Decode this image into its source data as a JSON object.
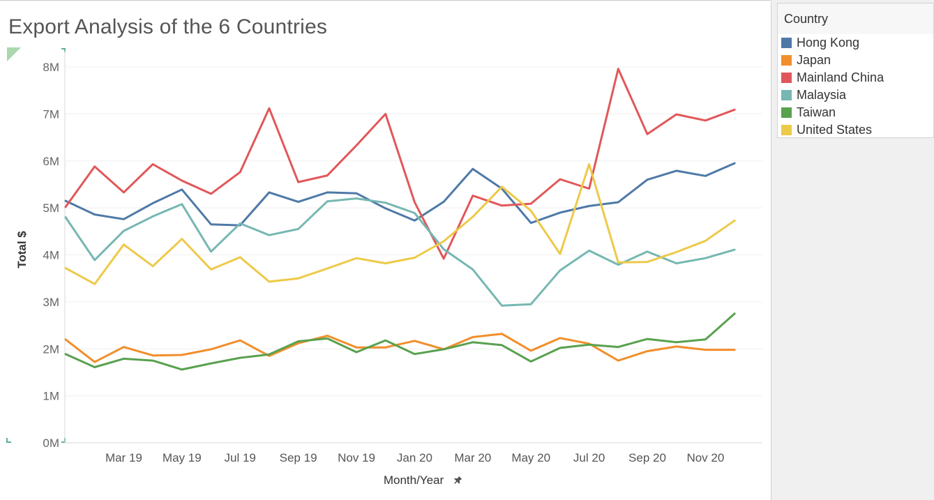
{
  "title": "Export Analysis of the 6 Countries",
  "legend": {
    "title": "Country",
    "items": [
      {
        "label": "Hong Kong",
        "color": "#4e79a7"
      },
      {
        "label": "Japan",
        "color": "#f28e2b"
      },
      {
        "label": "Mainland China",
        "color": "#e15759"
      },
      {
        "label": "Malaysia",
        "color": "#76b7b2"
      },
      {
        "label": "Taiwan",
        "color": "#59a14f"
      },
      {
        "label": "United States",
        "color": "#edc948"
      }
    ]
  },
  "chart_data": {
    "type": "line",
    "title": "Export Analysis of the 6 Countries",
    "xlabel": "Month/Year",
    "ylabel": "Total $",
    "x": [
      "Jan 19",
      "Feb 19",
      "Mar 19",
      "Apr 19",
      "May 19",
      "Jun 19",
      "Jul 19",
      "Aug 19",
      "Sep 19",
      "Oct 19",
      "Nov 19",
      "Dec 19",
      "Jan 20",
      "Feb 20",
      "Mar 20",
      "Apr 20",
      "May 20",
      "Jun 20",
      "Jul 20",
      "Aug 20",
      "Sep 20",
      "Oct 20",
      "Nov 20",
      "Dec 20"
    ],
    "x_tick_labels": [
      "Mar 19",
      "May 19",
      "Jul 19",
      "Sep 19",
      "Nov 19",
      "Jan 20",
      "Mar 20",
      "May 20",
      "Jul 20",
      "Sep 20",
      "Nov 20"
    ],
    "y_tick_labels": [
      "0M",
      "1M",
      "2M",
      "3M",
      "4M",
      "5M",
      "6M",
      "7M",
      "8M"
    ],
    "ylim": [
      0,
      8000000
    ],
    "grid": true,
    "legend_position": "right",
    "series": [
      {
        "name": "Hong Kong",
        "color": "#4e79a7",
        "values": [
          5150000,
          4860000,
          4760000,
          5100000,
          5390000,
          4650000,
          4630000,
          5330000,
          5130000,
          5330000,
          5310000,
          4990000,
          4730000,
          5130000,
          5830000,
          5410000,
          4680000,
          4900000,
          5040000,
          5120000,
          5600000,
          5790000,
          5680000,
          5950000
        ]
      },
      {
        "name": "Japan",
        "color": "#f28e2b",
        "values": [
          2200000,
          1720000,
          2040000,
          1860000,
          1870000,
          1990000,
          2180000,
          1850000,
          2120000,
          2280000,
          2030000,
          2030000,
          2170000,
          1990000,
          2250000,
          2320000,
          1960000,
          2230000,
          2110000,
          1750000,
          1950000,
          2050000,
          1980000,
          1980000
        ]
      },
      {
        "name": "Mainland China",
        "color": "#e15759",
        "values": [
          5020000,
          5880000,
          5330000,
          5930000,
          5580000,
          5300000,
          5760000,
          7120000,
          5550000,
          5690000,
          6330000,
          7000000,
          5120000,
          3920000,
          5260000,
          5050000,
          5090000,
          5610000,
          5410000,
          7960000,
          6570000,
          6990000,
          6860000,
          7090000
        ]
      },
      {
        "name": "Malaysia",
        "color": "#76b7b2",
        "values": [
          4800000,
          3890000,
          4510000,
          4820000,
          5080000,
          4070000,
          4670000,
          4420000,
          4550000,
          5140000,
          5200000,
          5110000,
          4890000,
          4120000,
          3690000,
          2920000,
          2950000,
          3670000,
          4090000,
          3790000,
          4070000,
          3820000,
          3930000,
          4110000
        ]
      },
      {
        "name": "Taiwan",
        "color": "#59a14f",
        "values": [
          1890000,
          1610000,
          1790000,
          1750000,
          1560000,
          1690000,
          1810000,
          1880000,
          2160000,
          2220000,
          1930000,
          2180000,
          1890000,
          1990000,
          2140000,
          2080000,
          1730000,
          2020000,
          2090000,
          2040000,
          2210000,
          2140000,
          2200000,
          2750000
        ]
      },
      {
        "name": "United States",
        "color": "#edc948",
        "values": [
          3720000,
          3380000,
          4220000,
          3760000,
          4340000,
          3690000,
          3950000,
          3430000,
          3500000,
          3710000,
          3930000,
          3820000,
          3940000,
          4290000,
          4810000,
          5450000,
          4940000,
          4020000,
          5930000,
          3840000,
          3850000,
          4060000,
          4300000,
          4730000
        ]
      }
    ]
  }
}
